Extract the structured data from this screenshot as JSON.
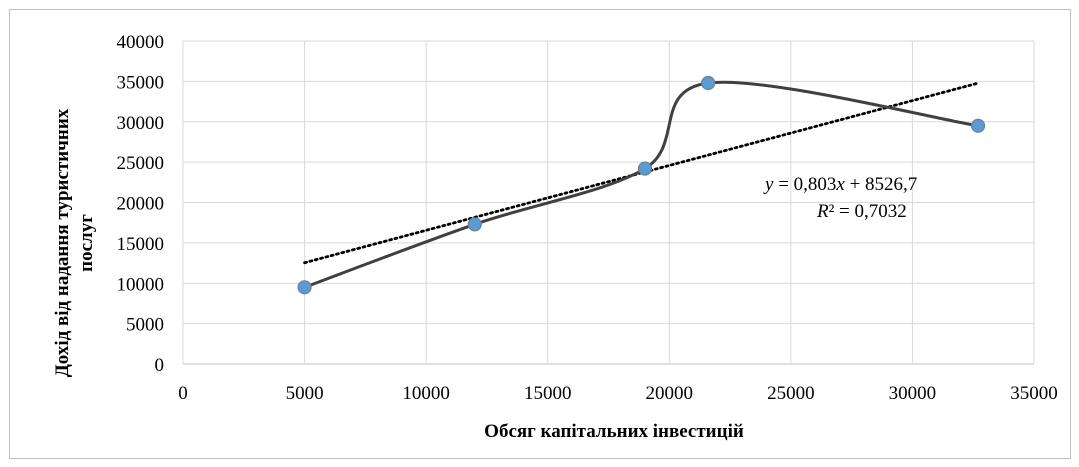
{
  "chart_data": {
    "type": "scatter",
    "xlabel": "Обсяг капітальних інвестицій",
    "ylabel_line1": "Дохід від надання туристичних",
    "ylabel_line2": "послуг",
    "xlim": [
      0,
      35000
    ],
    "ylim": [
      0,
      40000
    ],
    "x_ticks": [
      0,
      5000,
      10000,
      15000,
      20000,
      25000,
      30000,
      35000
    ],
    "y_ticks": [
      0,
      5000,
      10000,
      15000,
      20000,
      25000,
      30000,
      35000,
      40000
    ],
    "grid": true,
    "series": [
      {
        "x": [
          5000,
          12000,
          19000,
          21600,
          32700
        ],
        "y": [
          9500,
          17300,
          24200,
          34800,
          29500
        ],
        "color": "#404040",
        "marker_color": "#5b9bd5",
        "smoothed": true
      }
    ],
    "trendline": {
      "type": "linear",
      "slope": 0.803,
      "intercept": 8526.7,
      "x_range": [
        5000,
        32700
      ],
      "style": "dotted",
      "color": "#000000"
    },
    "annotations": {
      "equation": {
        "y": "y",
        "eq_sign": " = 0,803",
        "x": "x",
        "rest": " + 8526,7"
      },
      "r_squared": {
        "r": "R",
        "rest": "² = 0,7032"
      }
    }
  }
}
